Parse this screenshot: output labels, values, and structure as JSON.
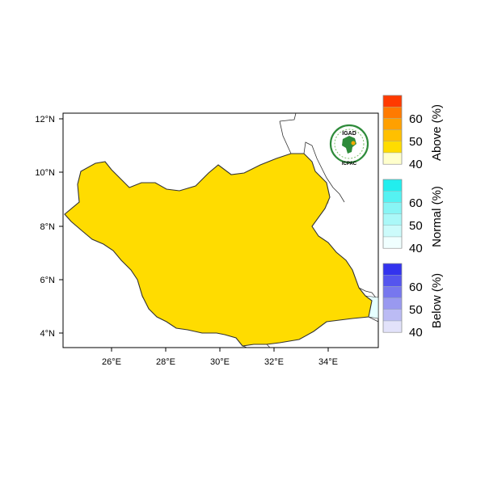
{
  "map": {
    "lat_ticks": [
      "4°N",
      "6°N",
      "8°N",
      "10°N",
      "12°N"
    ],
    "lon_ticks": [
      "26°E",
      "28°E",
      "30°E",
      "32°E",
      "34°E"
    ],
    "logo": {
      "top_text": "IGAD",
      "bottom_text": "ICPAC",
      "ring_color": "#2e8b3a"
    },
    "colors": {
      "above": "#ffdc00",
      "above_strong": "#ffc800",
      "above_light": "#ffffcc",
      "normal_light": "#e6ffff",
      "below_light": "#d8d8f8"
    }
  },
  "legend": {
    "groups": [
      {
        "label": "Above (%)",
        "ticks": [
          "60",
          "50",
          "40"
        ],
        "colors": [
          "#ff3a00",
          "#ff7a00",
          "#ffa000",
          "#ffc000",
          "#ffdc00",
          "#ffffcc"
        ]
      },
      {
        "label": "Normal (%)",
        "ticks": [
          "60",
          "50",
          "40"
        ],
        "colors": [
          "#22eeee",
          "#55f2f2",
          "#88f5f5",
          "#aaf8f8",
          "#ccfbfb",
          "#f0ffff"
        ]
      },
      {
        "label": "Below (%)",
        "ticks": [
          "60",
          "50",
          "40"
        ],
        "colors": [
          "#3333ee",
          "#5555ee",
          "#7777ee",
          "#9999f0",
          "#bbbbf4",
          "#e2e2fa"
        ]
      }
    ]
  }
}
